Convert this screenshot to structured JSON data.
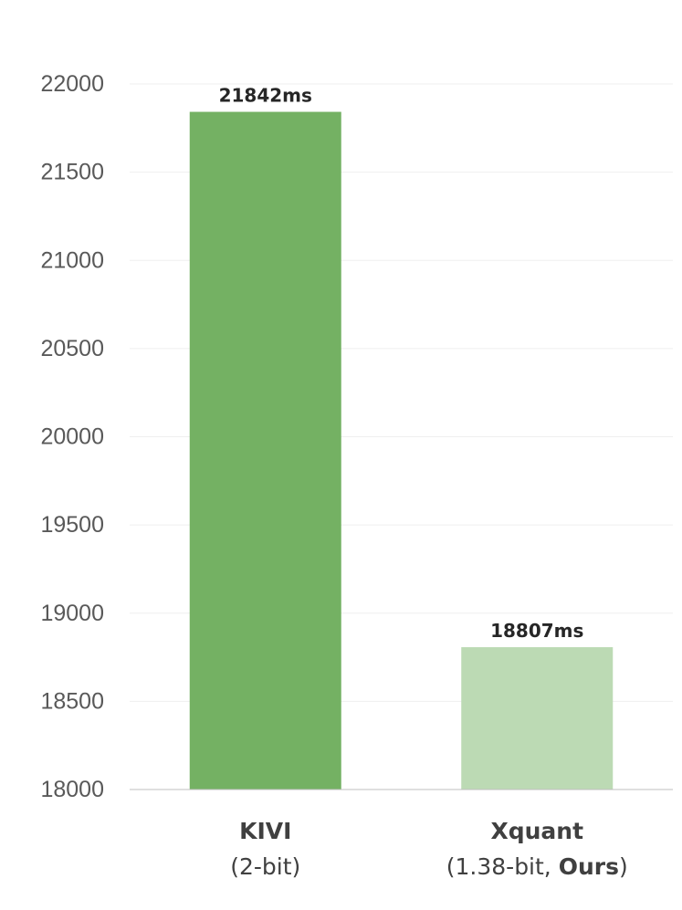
{
  "chart_data": {
    "type": "bar",
    "title": "",
    "xlabel": "",
    "ylabel": "",
    "ylim": [
      18000,
      22000
    ],
    "yticks": [
      18000,
      18500,
      19000,
      19500,
      20000,
      20500,
      21000,
      21500,
      22000
    ],
    "grid": true,
    "legend": "none",
    "categories": [
      {
        "name": "KIVI",
        "sub_prefix": "(2-bit)",
        "sub_bold": "",
        "sub_suffix": ""
      },
      {
        "name": "Xquant",
        "sub_prefix": "(1.38-bit, ",
        "sub_bold": "Ours",
        "sub_suffix": ")"
      }
    ],
    "values": [
      21842,
      18807
    ],
    "value_labels": [
      "21842ms",
      "18807ms"
    ],
    "colors": [
      "#74b163",
      "#bcdab4"
    ]
  },
  "colors": {
    "gridline": "#efefef",
    "axis": "#bfbfbf"
  }
}
